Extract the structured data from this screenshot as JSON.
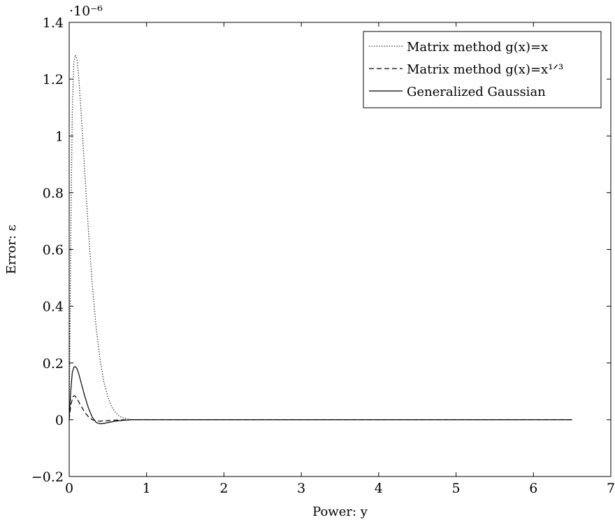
{
  "chart_data": {
    "type": "line",
    "title": "",
    "xlabel": "Power: y",
    "ylabel": "Error: ε",
    "xlim": [
      0,
      7
    ],
    "ylim": [
      -0.2,
      1.4
    ],
    "y_scale_label": "·10⁻⁶",
    "x_ticks": [
      0,
      1,
      2,
      3,
      4,
      5,
      6,
      7
    ],
    "x_tick_labels": [
      "0",
      "1",
      "2",
      "3",
      "4",
      "5",
      "6",
      "7"
    ],
    "y_ticks": [
      -0.2,
      0,
      0.2,
      0.4,
      0.6,
      0.8,
      1,
      1.2,
      1.4
    ],
    "y_tick_labels": [
      "−0.2",
      "0",
      "0.2",
      "0.4",
      "0.6",
      "0.8",
      "1",
      "1.2",
      "1.4"
    ],
    "grid": false,
    "legend_position": "top-right",
    "series": [
      {
        "name": "Matrix method g(x)=x",
        "style": "dotted",
        "x": [
          0,
          0.01,
          0.02,
          0.04,
          0.06,
          0.08,
          0.1,
          0.12,
          0.15,
          0.2,
          0.25,
          0.3,
          0.35,
          0.4,
          0.45,
          0.5,
          0.55,
          0.6,
          0.65,
          0.7,
          0.75,
          0.8,
          0.9,
          1.0,
          1.5,
          2,
          3,
          4,
          5,
          6,
          6.5
        ],
        "y": [
          0.0,
          0.3,
          0.62,
          1.08,
          1.26,
          1.285,
          1.27,
          1.22,
          1.1,
          0.88,
          0.66,
          0.47,
          0.32,
          0.21,
          0.13,
          0.08,
          0.045,
          0.025,
          0.012,
          0.006,
          0.003,
          0.001,
          0.0,
          0.0,
          0.0,
          0.0,
          0.0,
          0.0,
          0.0,
          0.0,
          0.0
        ]
      },
      {
        "name": "Matrix method g(x)=x¹ᐟ³",
        "style": "dashed",
        "x": [
          0,
          0.02,
          0.05,
          0.07,
          0.1,
          0.15,
          0.2,
          0.25,
          0.3,
          0.35,
          0.4,
          0.5,
          0.6,
          0.8,
          1.0,
          2,
          3,
          4,
          5,
          6,
          6.5
        ],
        "y": [
          0.0,
          0.05,
          0.082,
          0.085,
          0.075,
          0.05,
          0.027,
          0.01,
          0.0,
          -0.004,
          -0.005,
          -0.003,
          -0.001,
          0.0,
          0.0,
          0.0,
          0.0,
          0.0,
          0.0,
          0.0,
          0.0
        ]
      },
      {
        "name": "Generalized Gaussian",
        "style": "solid",
        "x": [
          0,
          0.02,
          0.04,
          0.06,
          0.08,
          0.1,
          0.12,
          0.15,
          0.2,
          0.25,
          0.3,
          0.35,
          0.4,
          0.45,
          0.5,
          0.6,
          0.7,
          0.8,
          1.0,
          2,
          3,
          4,
          5,
          6,
          6.5
        ],
        "y": [
          0.0,
          0.1,
          0.165,
          0.185,
          0.187,
          0.18,
          0.165,
          0.135,
          0.085,
          0.04,
          0.008,
          -0.01,
          -0.014,
          -0.013,
          -0.01,
          -0.005,
          -0.002,
          0.0,
          0.0,
          0.0,
          0.0,
          0.0,
          0.0,
          0.0,
          0.0
        ]
      }
    ]
  }
}
